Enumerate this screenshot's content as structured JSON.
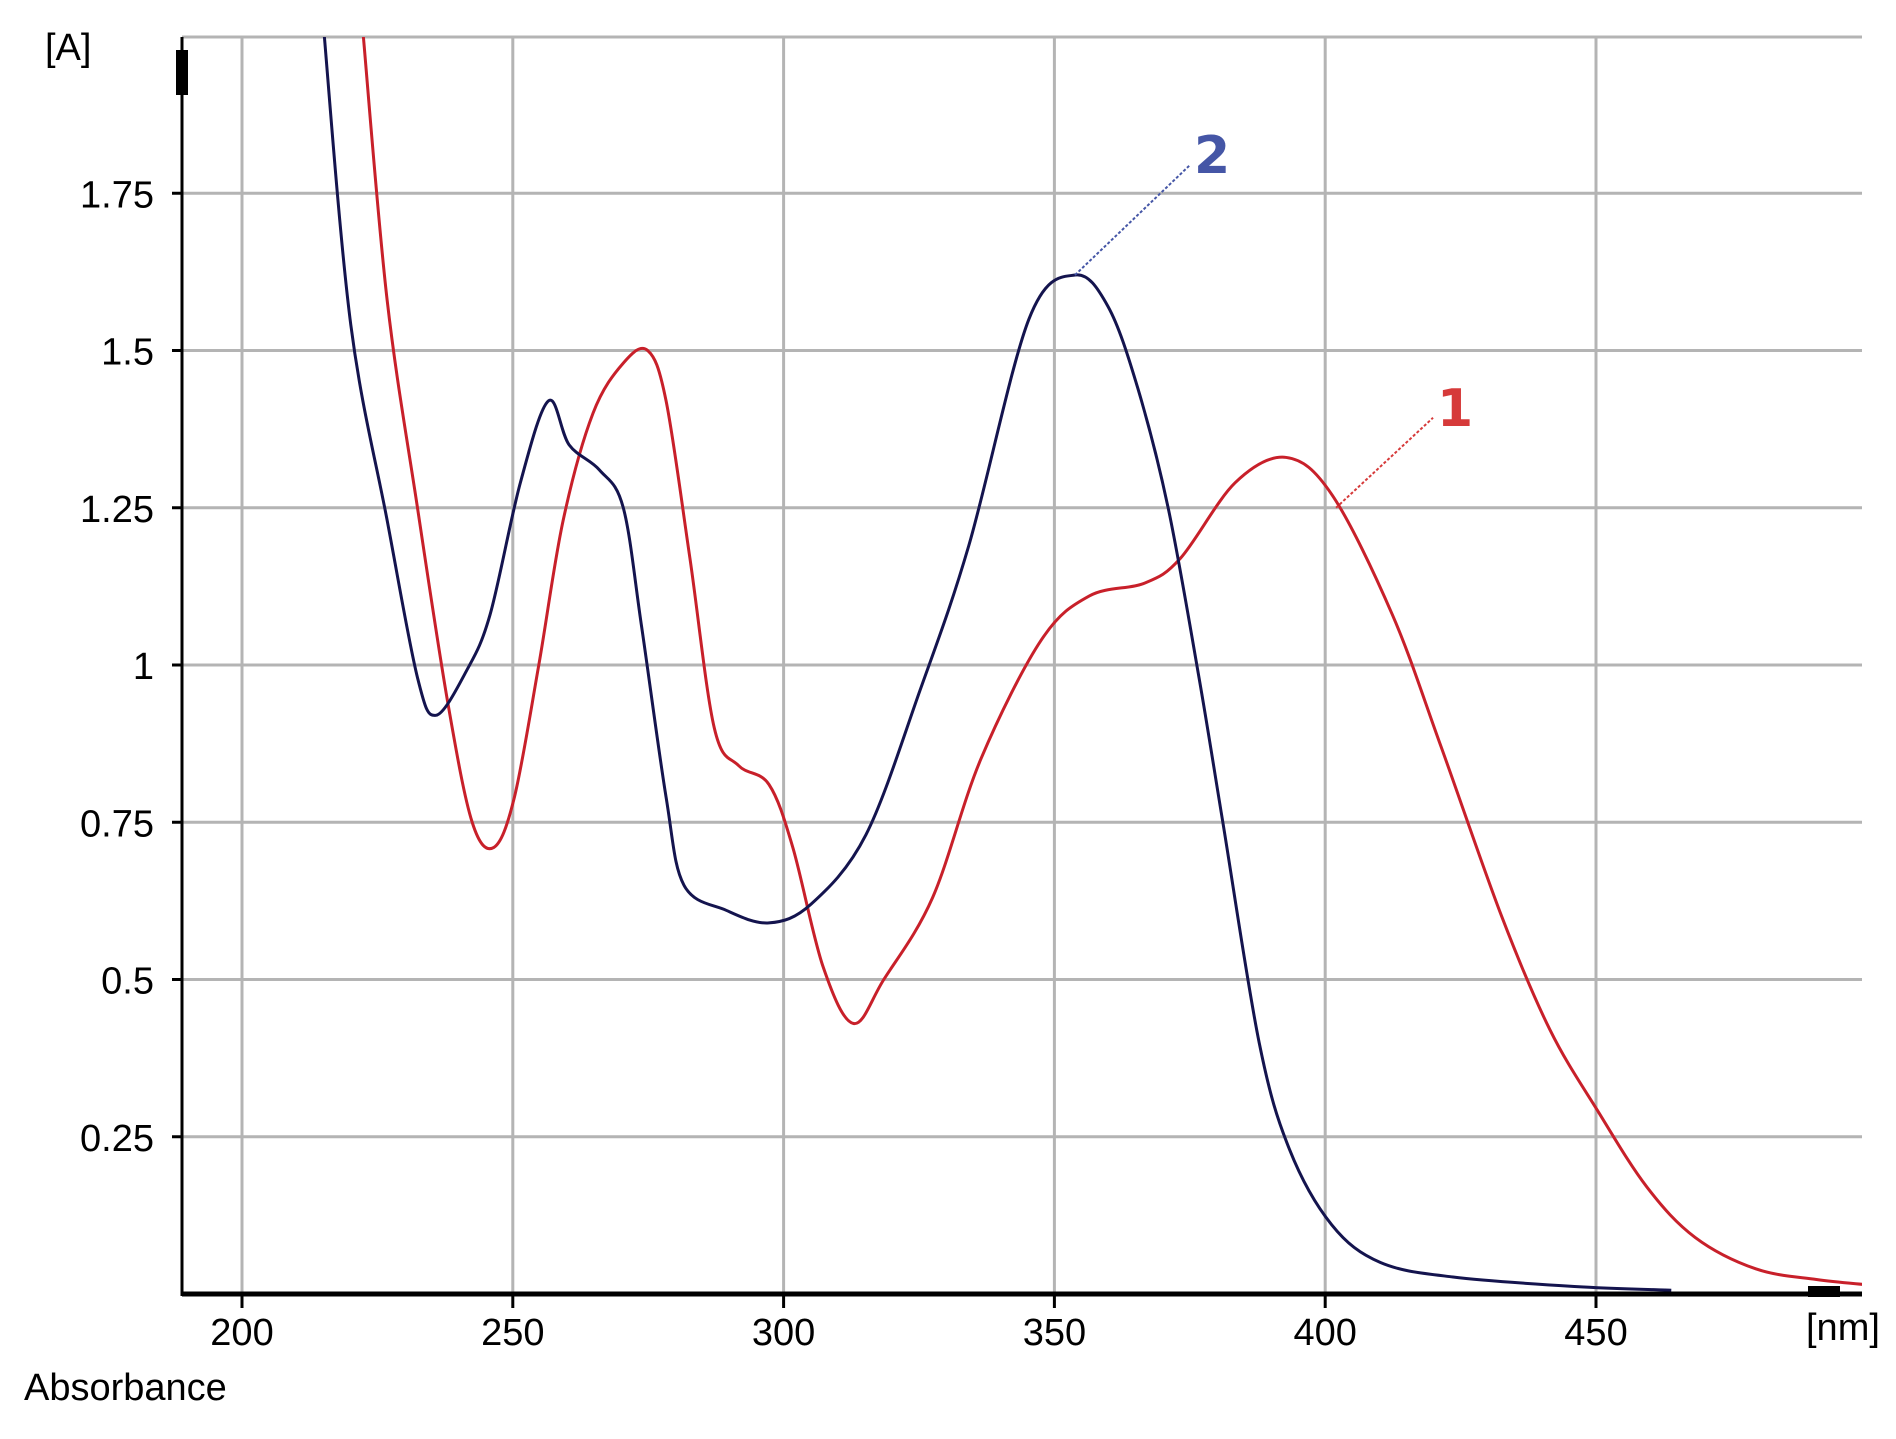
{
  "chart_data": {
    "type": "line",
    "title": "",
    "xlabel": "[nm]",
    "ylabel": "[A]",
    "footer_label": "Absorbance",
    "xlim": [
      189,
      499
    ],
    "ylim": [
      0,
      2
    ],
    "grid": true,
    "x_ticks": [
      200,
      250,
      300,
      350,
      400,
      450
    ],
    "y_ticks": [
      0.25,
      0.5,
      0.75,
      1,
      1.25,
      1.5,
      1.75
    ],
    "y_tick_labels": [
      "0.25",
      "0.5",
      "0.75",
      "1",
      "1.25",
      "1.5",
      "1.75"
    ],
    "series": [
      {
        "name": "1",
        "color": "#c8202a",
        "label_color": "#d63a3a",
        "points": [
          [
            221.5,
            2.1
          ],
          [
            222.4,
            2.0
          ],
          [
            226.8,
            1.58
          ],
          [
            232.4,
            1.25
          ],
          [
            238,
            0.94
          ],
          [
            242.5,
            0.75
          ],
          [
            246.5,
            0.71
          ],
          [
            250.3,
            0.79
          ],
          [
            254.8,
            1.0
          ],
          [
            259.3,
            1.23
          ],
          [
            264.8,
            1.4
          ],
          [
            270.4,
            1.48
          ],
          [
            274.9,
            1.5
          ],
          [
            278.3,
            1.42
          ],
          [
            282.7,
            1.17
          ],
          [
            287.2,
            0.9
          ],
          [
            291.7,
            0.84
          ],
          [
            297.3,
            0.81
          ],
          [
            301.7,
            0.71
          ],
          [
            307.3,
            0.52
          ],
          [
            312.9,
            0.43
          ],
          [
            318.5,
            0.5
          ],
          [
            327.5,
            0.63
          ],
          [
            336.4,
            0.85
          ],
          [
            347.6,
            1.04
          ],
          [
            356.5,
            1.11
          ],
          [
            366.6,
            1.13
          ],
          [
            373.3,
            1.17
          ],
          [
            383.4,
            1.29
          ],
          [
            392.8,
            1.33
          ],
          [
            401.3,
            1.27
          ],
          [
            412.4,
            1.08
          ],
          [
            421.4,
            0.87
          ],
          [
            432.6,
            0.6
          ],
          [
            441.5,
            0.42
          ],
          [
            450.4,
            0.29
          ],
          [
            459.4,
            0.17
          ],
          [
            468.3,
            0.09
          ],
          [
            479.5,
            0.04
          ],
          [
            490.7,
            0.023
          ],
          [
            499.6,
            0.015
          ]
        ]
      },
      {
        "name": "2",
        "color": "#14144e",
        "label_color": "#4556a6",
        "points": [
          [
            214.6,
            2.1
          ],
          [
            215.2,
            2.0
          ],
          [
            220.1,
            1.54
          ],
          [
            226.8,
            1.23
          ],
          [
            232.4,
            0.98
          ],
          [
            235.8,
            0.92
          ],
          [
            241.4,
            0.99
          ],
          [
            245.8,
            1.08
          ],
          [
            251.4,
            1.29
          ],
          [
            256.6,
            1.42
          ],
          [
            260.4,
            1.35
          ],
          [
            266,
            1.31
          ],
          [
            270.4,
            1.25
          ],
          [
            273.8,
            1.06
          ],
          [
            278.3,
            0.79
          ],
          [
            281.6,
            0.65
          ],
          [
            289.4,
            0.61
          ],
          [
            297.3,
            0.59
          ],
          [
            305.1,
            0.62
          ],
          [
            315.2,
            0.73
          ],
          [
            325.2,
            0.96
          ],
          [
            334.2,
            1.19
          ],
          [
            345.3,
            1.55
          ],
          [
            353.8,
            1.62
          ],
          [
            359.9,
            1.57
          ],
          [
            365.4,
            1.44
          ],
          [
            371,
            1.25
          ],
          [
            376.7,
            0.98
          ],
          [
            381.1,
            0.75
          ],
          [
            387.8,
            0.4
          ],
          [
            393.4,
            0.23
          ],
          [
            401.2,
            0.11
          ],
          [
            410.2,
            0.05
          ],
          [
            423.6,
            0.027
          ],
          [
            446,
            0.012
          ],
          [
            463.9,
            0.006
          ]
        ]
      }
    ],
    "annotations": [
      {
        "text": "2",
        "series": "2",
        "points_to": [
          353.8,
          1.62
        ]
      },
      {
        "text": "1",
        "series": "1",
        "points_to": [
          402,
          1.25
        ]
      }
    ]
  }
}
